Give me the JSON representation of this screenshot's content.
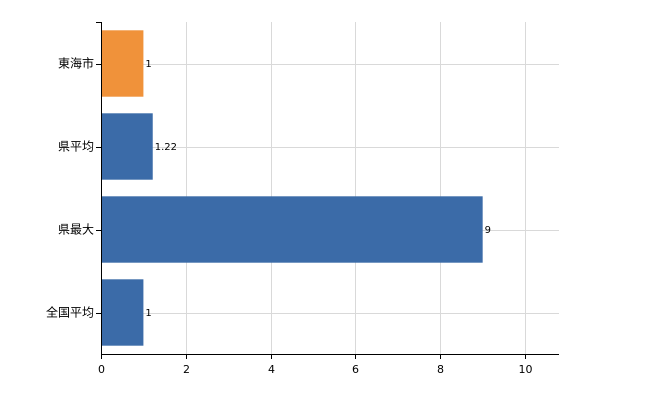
{
  "chart_data": {
    "type": "bar",
    "orientation": "horizontal",
    "categories": [
      "東海市",
      "県平均",
      "県最大",
      "全国平均"
    ],
    "values": [
      1,
      1.22,
      9,
      1
    ],
    "value_labels": [
      "1",
      "1.22",
      "9",
      "1"
    ],
    "bar_colors": [
      "#F0923A",
      "#3B6BA8",
      "#3B6BA8",
      "#3B6BA8"
    ],
    "xlim": [
      0,
      10.8
    ],
    "xticks": [
      0,
      2,
      4,
      6,
      8,
      10
    ],
    "xtick_labels": [
      "0",
      "2",
      "4",
      "6",
      "8",
      "10"
    ],
    "grid": true,
    "legend": "none",
    "title": "",
    "xlabel": "",
    "ylabel": ""
  }
}
